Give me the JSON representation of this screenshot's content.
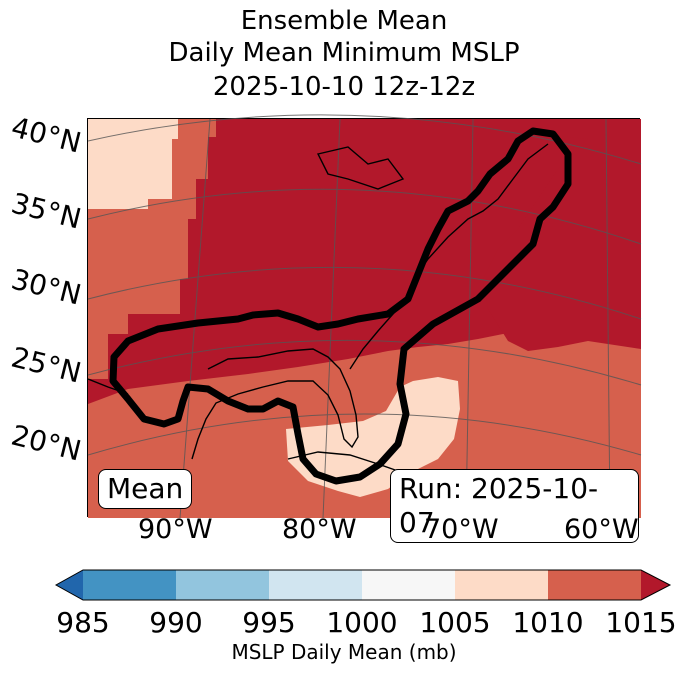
{
  "title": {
    "line1": "Ensemble Mean",
    "line2": "Daily Mean Minimum MSLP",
    "line3": "2025-10-10 12z-12z"
  },
  "map": {
    "lat_labels": [
      "40°N",
      "35°N",
      "30°N",
      "25°N",
      "20°N"
    ],
    "lon_labels": [
      "90°W",
      "80°W",
      "70°W",
      "60°W"
    ],
    "mean_label": "Mean",
    "run_label": "Run: 2025-10-07",
    "colors": {
      "dark_red": "#b2182b",
      "red": "#d6604d",
      "light_salmon": "#fddbc7",
      "ocean": "#fddbc7"
    }
  },
  "colorbar": {
    "ticks": [
      "985",
      "990",
      "995",
      "1000",
      "1005",
      "1010",
      "1015"
    ],
    "colors": [
      "#2166ac",
      "#4393c3",
      "#92c5de",
      "#d1e5f0",
      "#f7f7f7",
      "#fddbc7",
      "#d6604d",
      "#b2182b"
    ],
    "label": "MSLP Daily Mean (mb)"
  }
}
